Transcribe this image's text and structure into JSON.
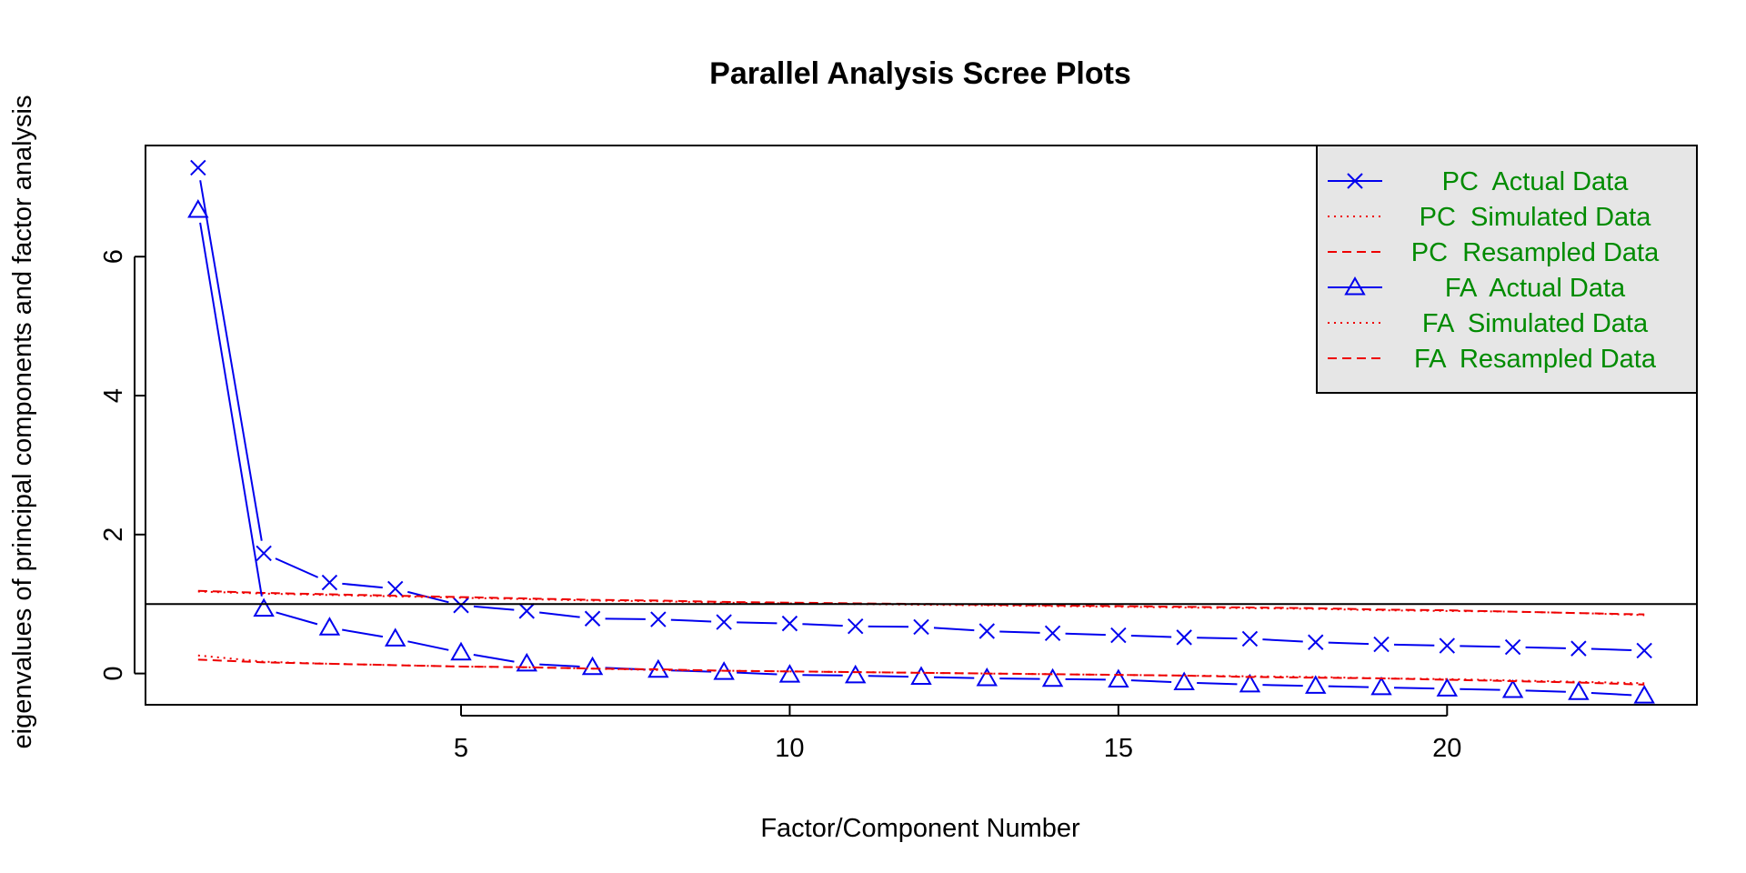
{
  "chart_data": {
    "type": "line",
    "title": "Parallel Analysis Scree Plots",
    "xlabel": "Factor/Component Number",
    "ylabel": "eigenvalues of principal components and factor analysis",
    "xlim": [
      0.2,
      23.8
    ],
    "ylim": [
      -0.45,
      7.6
    ],
    "xticks": [
      5,
      10,
      15,
      20
    ],
    "yticks": [
      0,
      2,
      4,
      6
    ],
    "hline": 1,
    "grid": false,
    "legend_position": "top-right",
    "colors": {
      "actual": "#0000ee",
      "simulated": "#ee0000",
      "box": "#000000",
      "legend_bg": "#e6e6e6",
      "legend_text": "#008b00"
    },
    "x": [
      1,
      2,
      3,
      4,
      5,
      6,
      7,
      8,
      9,
      10,
      11,
      12,
      13,
      14,
      15,
      16,
      17,
      18,
      19,
      20,
      21,
      22,
      23
    ],
    "series": [
      {
        "name": "PC  Actual Data",
        "style": "actual",
        "marker": "x",
        "values": [
          7.28,
          1.73,
          1.31,
          1.22,
          0.98,
          0.9,
          0.79,
          0.78,
          0.74,
          0.72,
          0.68,
          0.67,
          0.61,
          0.58,
          0.55,
          0.52,
          0.5,
          0.45,
          0.42,
          0.4,
          0.38,
          0.36,
          0.33
        ]
      },
      {
        "name": "PC  Simulated Data",
        "style": "dotted",
        "values": [
          1.18,
          1.15,
          1.13,
          1.11,
          1.09,
          1.07,
          1.05,
          1.04,
          1.02,
          1.01,
          1.0,
          0.99,
          0.98,
          0.97,
          0.96,
          0.95,
          0.94,
          0.93,
          0.91,
          0.9,
          0.89,
          0.87,
          0.84
        ]
      },
      {
        "name": "PC  Resampled Data",
        "style": "dashed",
        "values": [
          1.19,
          1.16,
          1.14,
          1.12,
          1.1,
          1.08,
          1.06,
          1.05,
          1.03,
          1.02,
          1.01,
          1.0,
          0.99,
          0.98,
          0.97,
          0.96,
          0.95,
          0.94,
          0.92,
          0.91,
          0.89,
          0.87,
          0.85
        ]
      },
      {
        "name": "FA  Actual Data",
        "style": "actual",
        "marker": "triangle",
        "values": [
          6.67,
          0.93,
          0.66,
          0.5,
          0.3,
          0.14,
          0.09,
          0.05,
          0.02,
          -0.02,
          -0.03,
          -0.05,
          -0.07,
          -0.08,
          -0.09,
          -0.13,
          -0.16,
          -0.18,
          -0.2,
          -0.22,
          -0.24,
          -0.27,
          -0.32
        ]
      },
      {
        "name": "FA  Simulated Data",
        "style": "dotted",
        "values": [
          0.26,
          0.17,
          0.14,
          0.12,
          0.1,
          0.09,
          0.07,
          0.05,
          0.04,
          0.03,
          0.02,
          0.01,
          0.0,
          -0.01,
          -0.02,
          -0.03,
          -0.04,
          -0.05,
          -0.07,
          -0.08,
          -0.1,
          -0.12,
          -0.14
        ]
      },
      {
        "name": "FA  Resampled Data",
        "style": "dashed",
        "values": [
          0.2,
          0.16,
          0.14,
          0.12,
          0.1,
          0.09,
          0.07,
          0.06,
          0.04,
          0.03,
          0.02,
          0.01,
          0.0,
          -0.01,
          -0.02,
          -0.03,
          -0.05,
          -0.06,
          -0.07,
          -0.09,
          -0.11,
          -0.13,
          -0.16
        ]
      }
    ]
  }
}
